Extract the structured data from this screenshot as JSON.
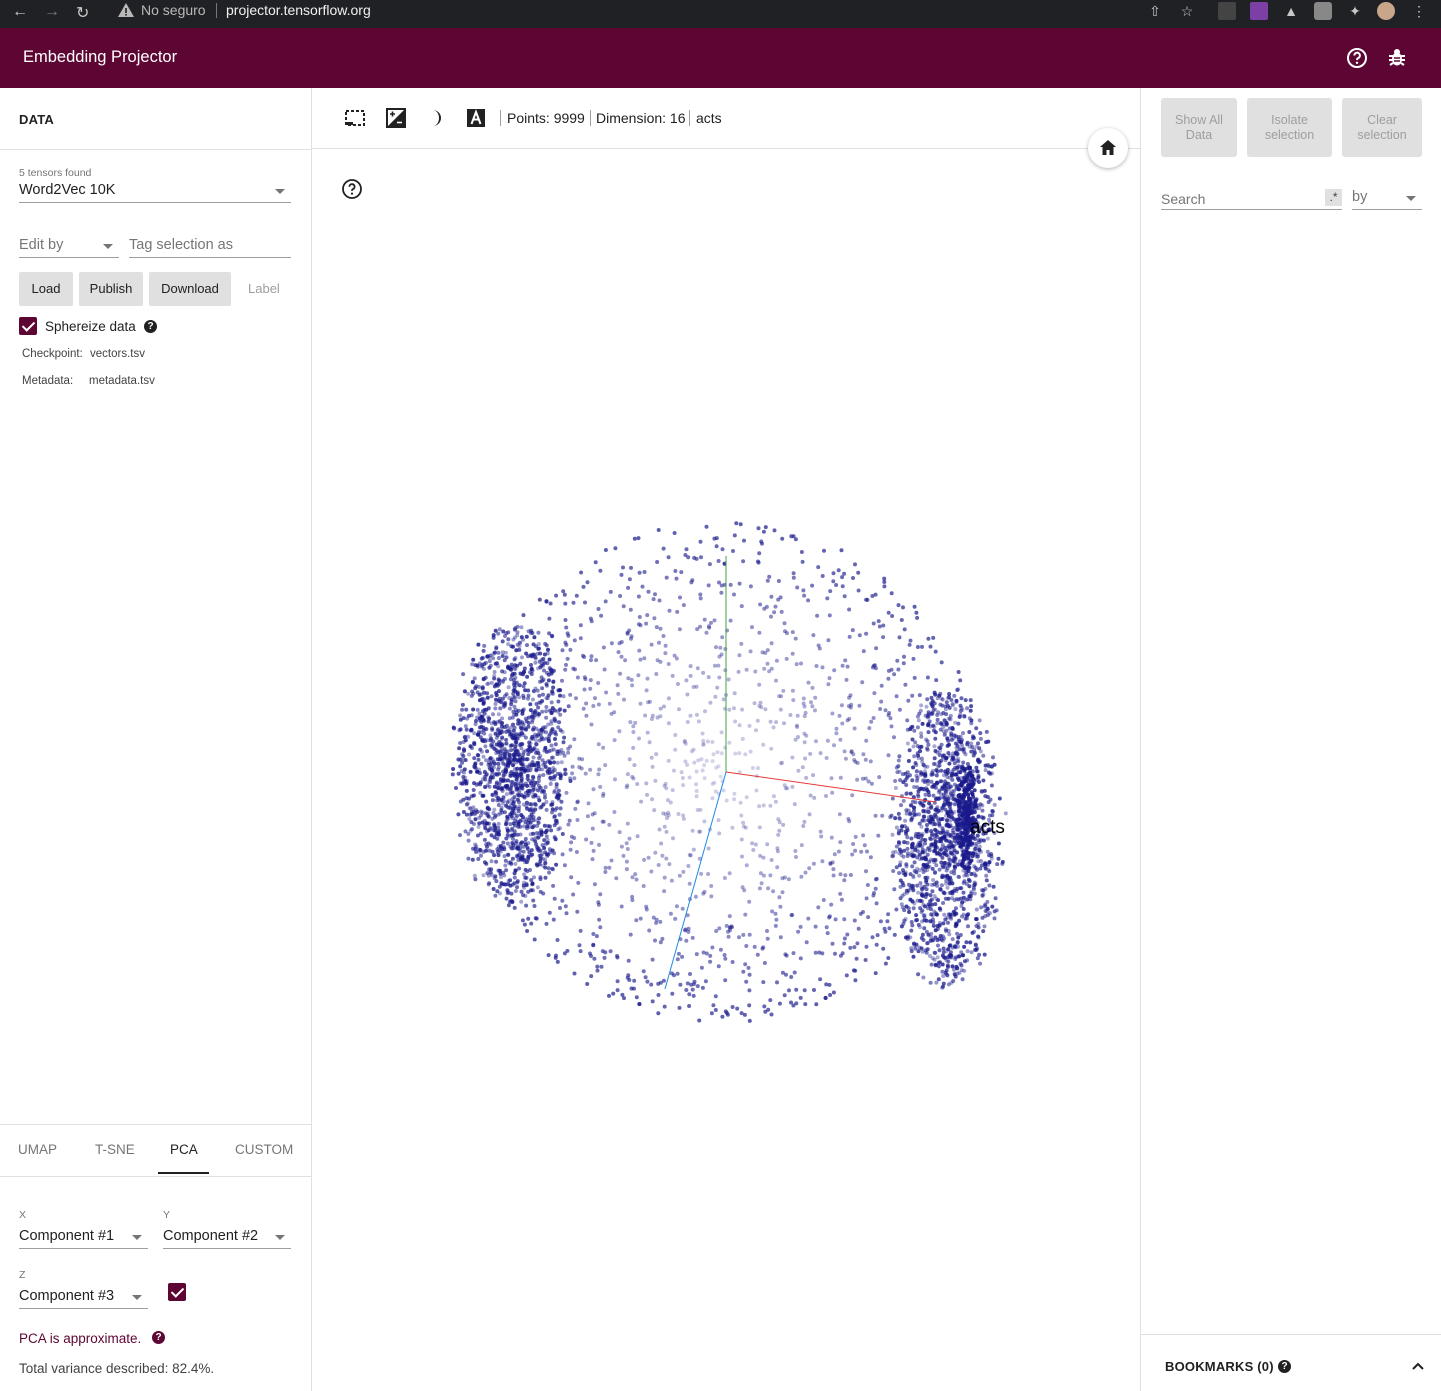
{
  "browser": {
    "insecure_label": "No seguro",
    "url": "projector.tensorflow.org"
  },
  "app": {
    "title": "Embedding Projector"
  },
  "data_panel": {
    "title": "DATA",
    "tensors_found": "5 tensors found",
    "tensor_selected": "Word2Vec 10K",
    "edit_by_placeholder": "Edit by",
    "tag_placeholder": "Tag selection as",
    "buttons": {
      "load": "Load",
      "publish": "Publish",
      "download": "Download",
      "label": "Label"
    },
    "sphereize_label": "Sphereize data",
    "sphereize_checked": true,
    "checkpoint_label": "Checkpoint:",
    "checkpoint_value": "vectors.tsv",
    "metadata_label": "Metadata:",
    "metadata_value": "metadata.tsv"
  },
  "projection": {
    "tabs": [
      "UMAP",
      "T-SNE",
      "PCA",
      "CUSTOM"
    ],
    "active_tab": "PCA",
    "x_label": "X",
    "x_value": "Component #1",
    "y_label": "Y",
    "y_value": "Component #2",
    "z_label": "Z",
    "z_value": "Component #3",
    "z_enabled": true,
    "pca_note": "PCA is approximate.",
    "variance": "Total variance described: 82.4%."
  },
  "toolbar": {
    "points": "Points: 9999",
    "dimension": "Dimension: 16",
    "selected_label": "acts"
  },
  "scatter": {
    "point_label": "acts",
    "point_color": "#1a1a8c",
    "axis_colors": {
      "x": "#e53935",
      "y": "#43a047",
      "z": "#1e88e5"
    }
  },
  "inspector": {
    "show_all": "Show All Data",
    "isolate": "Isolate selection",
    "clear": "Clear selection",
    "search_placeholder": "Search",
    "regex_symbol": ".*",
    "by_label": "by",
    "bookmarks": "BOOKMARKS (0)"
  },
  "colors": {
    "brand": "#5d0633"
  }
}
